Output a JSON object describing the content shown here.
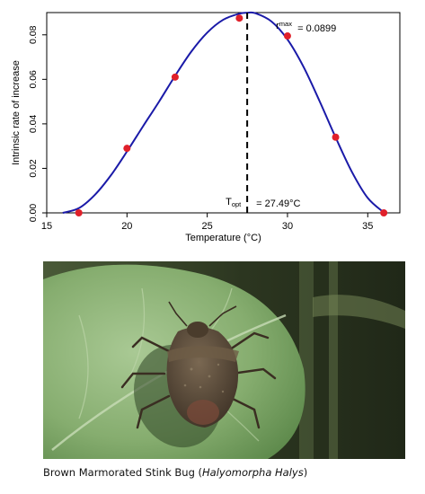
{
  "chart_data": {
    "type": "line",
    "title": "",
    "xlabel": "Temperature (°C)",
    "ylabel": "Intrinsic rate of increase",
    "xlim": [
      15,
      37
    ],
    "ylim": [
      0,
      0.09
    ],
    "x_ticks": [
      "15",
      "20",
      "25",
      "30",
      "35"
    ],
    "y_ticks": [
      "0.00",
      "0.02",
      "0.04",
      "0.06",
      "0.08"
    ],
    "grid": false,
    "legend": "none",
    "points": {
      "x": [
        17,
        20,
        23,
        27,
        30,
        33,
        36
      ],
      "y": [
        0.0,
        0.029,
        0.061,
        0.0875,
        0.0795,
        0.034,
        0.0
      ]
    },
    "fitted_curve": {
      "x": [
        16,
        17,
        18,
        19,
        20,
        21,
        22,
        23,
        24,
        25,
        26,
        27,
        27.49,
        28,
        29,
        30,
        31,
        32,
        33,
        34,
        35,
        36
      ],
      "y": [
        0.0,
        0.0021,
        0.0081,
        0.0169,
        0.0276,
        0.0389,
        0.05,
        0.0616,
        0.0724,
        0.081,
        0.0868,
        0.0895,
        0.0899,
        0.0897,
        0.086,
        0.0779,
        0.0656,
        0.0502,
        0.0339,
        0.0186,
        0.0067,
        0.0002
      ]
    },
    "t_opt": 27.49,
    "r_max": 0.0899,
    "annotations": {
      "rmax_symbol": "r",
      "rmax_sub": "max",
      "rmax_value": "= 0.0899",
      "topt_symbol": "T",
      "topt_sub": "opt",
      "topt_value": "= 27.49°C"
    },
    "colors": {
      "curve": "#1a1aa8",
      "points": "#e0202a",
      "vline": "#000000"
    }
  },
  "photo": {
    "subject": "brown-marmorated-stink-bug-on-leaf",
    "colors": {
      "leaf": "#8fb57a",
      "background": "#3a4a2a",
      "bug": "#5a4a3a"
    }
  },
  "caption": {
    "prefix": "Brown Marmorated Stink Bug (",
    "italic": "Halyomorpha Halys",
    "suffix": ")"
  }
}
